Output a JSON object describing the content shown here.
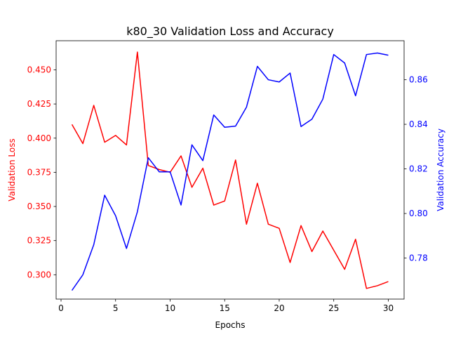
{
  "chart_data": {
    "type": "line",
    "title": "k80_30 Validation Loss and Accuracy",
    "xlabel": "Epochs",
    "x": [
      1,
      2,
      3,
      4,
      5,
      6,
      7,
      8,
      9,
      10,
      11,
      12,
      13,
      14,
      15,
      16,
      17,
      18,
      19,
      20,
      21,
      22,
      23,
      24,
      25,
      26,
      27,
      28,
      29,
      30
    ],
    "xlim": [
      -0.45,
      31.45
    ],
    "xticks": [
      0,
      5,
      10,
      15,
      20,
      25,
      30
    ],
    "left_axis": {
      "label": "Validation Loss",
      "color": "#ff0000",
      "ylim": [
        0.2822,
        0.4713
      ],
      "ticks": [
        "0.300",
        "0.325",
        "0.350",
        "0.375",
        "0.400",
        "0.425",
        "0.450"
      ]
    },
    "right_axis": {
      "label": "Validation Accuracy",
      "color": "#0000ff",
      "ylim": [
        0.7616,
        0.8775
      ],
      "ticks": [
        "0.78",
        "0.80",
        "0.82",
        "0.84",
        "0.86"
      ]
    },
    "series": [
      {
        "axis": "left",
        "color": "#ff0000",
        "values": [
          0.41,
          0.396,
          0.424,
          0.397,
          0.402,
          0.395,
          0.463,
          0.38,
          0.377,
          0.375,
          0.387,
          0.364,
          0.378,
          0.351,
          0.354,
          0.384,
          0.337,
          0.367,
          0.337,
          0.334,
          0.309,
          0.336,
          0.317,
          0.332,
          0.318,
          0.304,
          0.326,
          0.29,
          0.292,
          0.295
        ]
      },
      {
        "axis": "right",
        "color": "#0000ff",
        "values": [
          0.7655,
          0.7725,
          0.786,
          0.8082,
          0.799,
          0.7843,
          0.8008,
          0.825,
          0.8187,
          0.8187,
          0.8038,
          0.8308,
          0.8237,
          0.8442,
          0.8387,
          0.8392,
          0.8477,
          0.866,
          0.86,
          0.859,
          0.863,
          0.839,
          0.8423,
          0.8513,
          0.8713,
          0.8675,
          0.8528,
          0.8713,
          0.872,
          0.871
        ]
      }
    ]
  }
}
